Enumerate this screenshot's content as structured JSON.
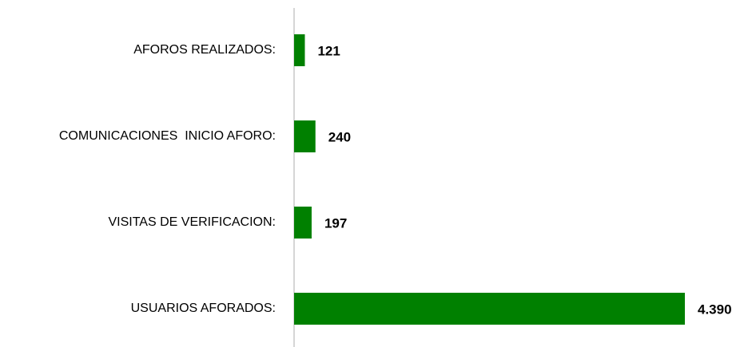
{
  "chart_data": {
    "type": "bar",
    "orientation": "horizontal",
    "categories": [
      "AFOROS REALIZADOS:",
      "COMUNICACIONES  INICIO AFORO:",
      "VISITAS DE VERIFICACION:",
      "USUARIOS AFORADOS:"
    ],
    "values": [
      121,
      240,
      197,
      4390
    ],
    "value_labels": [
      "121",
      "240",
      "197",
      "4.390"
    ],
    "color": "#008000"
  }
}
